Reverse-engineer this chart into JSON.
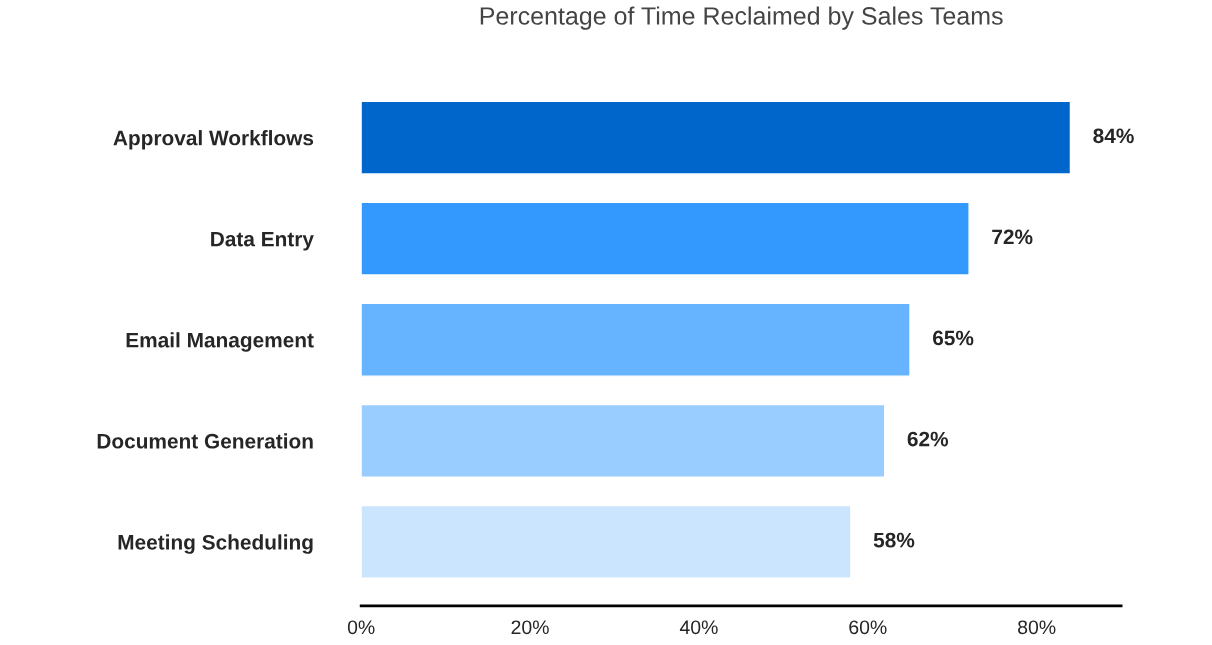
{
  "chart_data": {
    "type": "bar",
    "orientation": "horizontal",
    "title": "Percentage of Time Reclaimed by Sales Teams",
    "categories": [
      "Approval Workflows",
      "Data Entry",
      "Email Management",
      "Document Generation",
      "Meeting Scheduling"
    ],
    "values": [
      84,
      72,
      65,
      62,
      58
    ],
    "colors": [
      "#0066cc",
      "#3399ff",
      "#66b3ff",
      "#99ccff",
      "#cce5ff"
    ],
    "value_labels": [
      "84%",
      "72%",
      "65%",
      "62%",
      "58%"
    ],
    "xlim": [
      0,
      90
    ],
    "xticks": [
      {
        "value": 0,
        "label": "0%"
      },
      {
        "value": 20,
        "label": "20%"
      },
      {
        "value": 40,
        "label": "40%"
      },
      {
        "value": 60,
        "label": "60%"
      },
      {
        "value": 80,
        "label": "80%"
      }
    ],
    "grid": false
  }
}
